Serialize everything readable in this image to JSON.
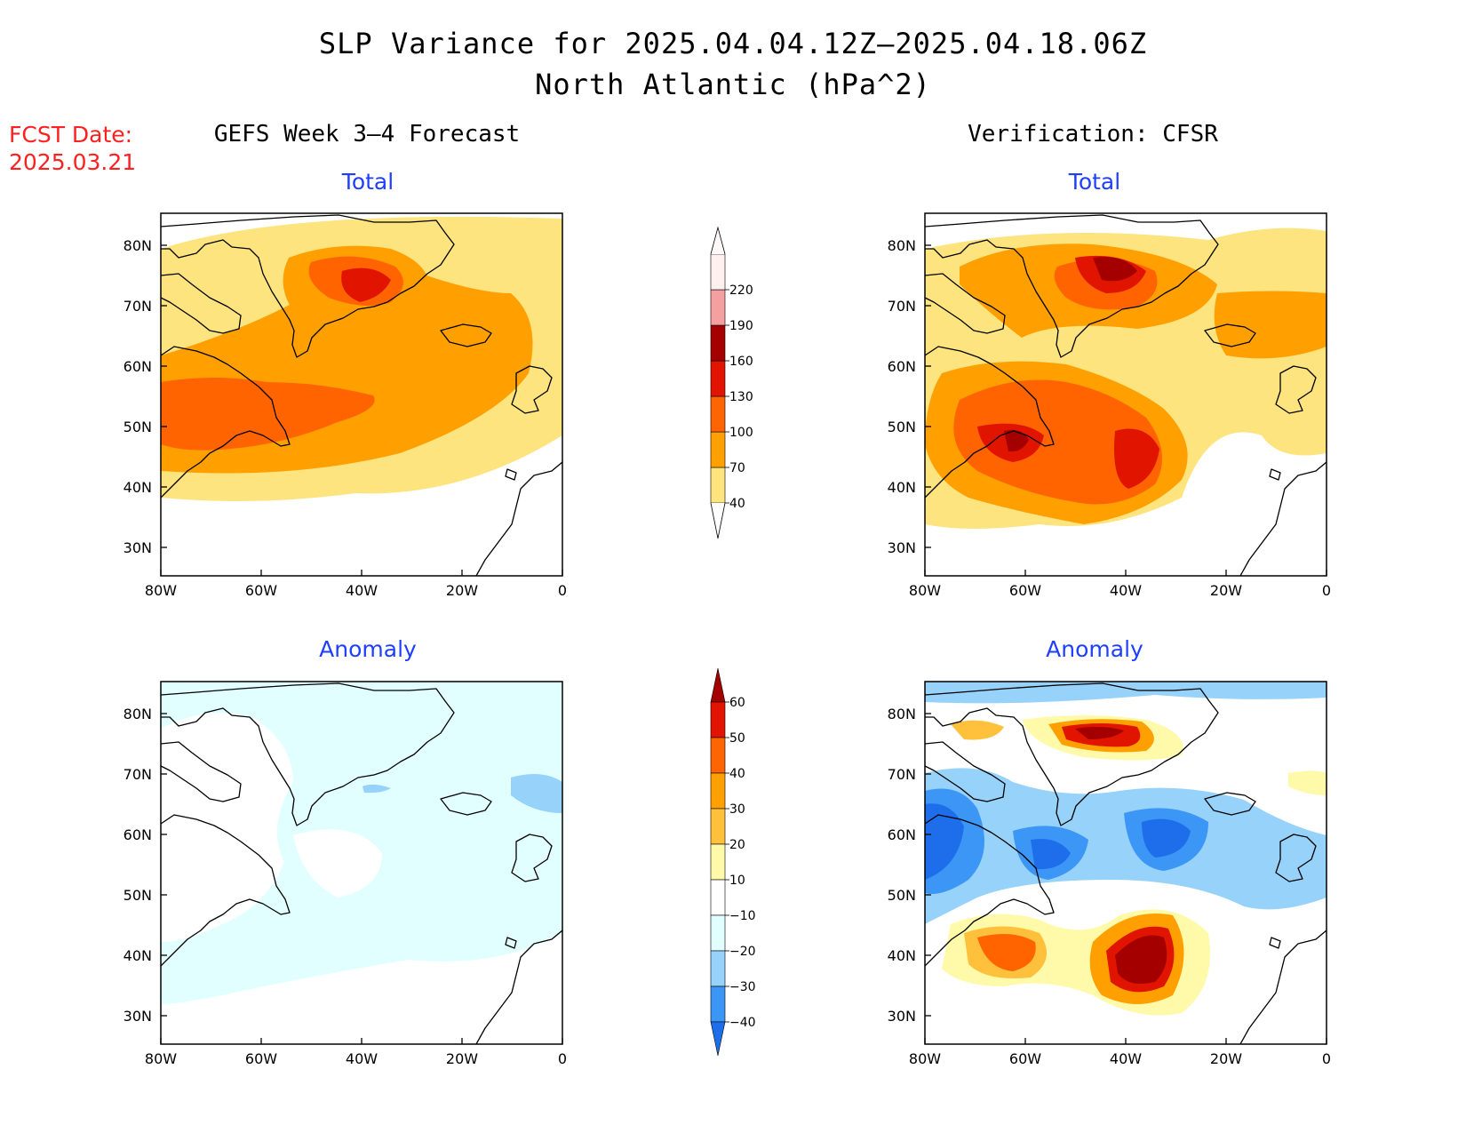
{
  "header": {
    "title_line1": "SLP Variance for 2025.04.04.12Z–2025.04.18.06Z",
    "title_line2": "North Atlantic (hPa^2)",
    "fcst_label": "FCST Date:",
    "fcst_date": "2025.03.21"
  },
  "columns": {
    "left": "GEFS Week 3–4 Forecast",
    "right": "Verification: CFSR"
  },
  "panels": {
    "gefs_total": {
      "subtitle": "Total"
    },
    "cfsr_total": {
      "subtitle": "Total"
    },
    "gefs_anomaly": {
      "subtitle": "Anomaly"
    },
    "cfsr_anomaly": {
      "subtitle": "Anomaly"
    }
  },
  "axes": {
    "x_ticks": [
      "80W",
      "60W",
      "40W",
      "20W",
      "0"
    ],
    "y_ticks": [
      "80N",
      "70N",
      "60N",
      "50N",
      "40N",
      "30N"
    ]
  },
  "colorbars": {
    "total": {
      "levels": [
        "40",
        "70",
        "100",
        "130",
        "160",
        "190",
        "220"
      ],
      "colors": [
        "#fde47f",
        "#ffa000",
        "#ff6400",
        "#e11400",
        "#a50000",
        "#f4a0a0",
        "#fff0f0"
      ]
    },
    "anomaly": {
      "levels": [
        "60",
        "50",
        "40",
        "30",
        "20",
        "10",
        "−10",
        "−20",
        "−30",
        "−40"
      ],
      "colors": [
        "#a50000",
        "#e11400",
        "#ff6400",
        "#ffa000",
        "#ffc03c",
        "#fffaaa",
        "#ffffff",
        "#e1ffff",
        "#96d2fa",
        "#3c96f5",
        "#1e6eeb"
      ]
    }
  }
}
